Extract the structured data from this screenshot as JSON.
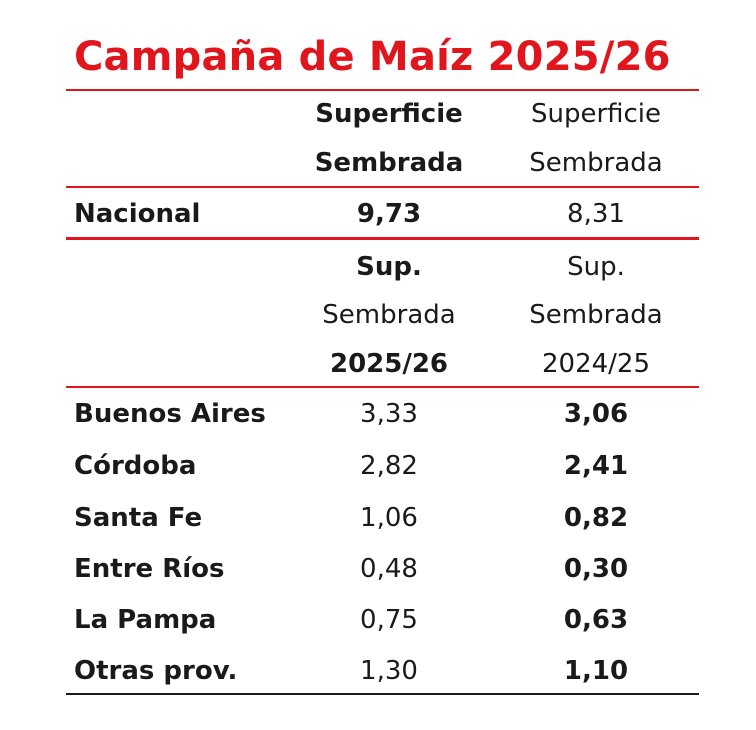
{
  "title": "Campaña de Maíz 2025/26",
  "header_top": {
    "col1": [
      "Superficie",
      "Sembrada"
    ],
    "col2": [
      "Superficie",
      "Sembrada"
    ]
  },
  "national": {
    "label": "Nacional",
    "col1": "9,73",
    "col2": "8,31"
  },
  "header_bottom": {
    "col1": [
      "Sup.",
      "Sembrada",
      "2025/26"
    ],
    "col2": [
      "Sup.",
      "Sembrada",
      "2024/25"
    ]
  },
  "provinces": [
    {
      "label": "Buenos Aires",
      "col1": "3,33",
      "col2": "3,06"
    },
    {
      "label": "Córdoba",
      "col1": "2,82",
      "col2": "2,41"
    },
    {
      "label": "Santa Fe",
      "col1": "1,06",
      "col2": "0,82"
    },
    {
      "label": "Entre Ríos",
      "col1": "0,48",
      "col2": "0,30"
    },
    {
      "label": "La Pampa",
      "col1": "0,75",
      "col2": "0,63"
    },
    {
      "label": "Otras prov.",
      "col1": "1,30",
      "col2": "1,10"
    }
  ],
  "colors": {
    "accent": "#e0161c",
    "text": "#1a1a1a"
  }
}
